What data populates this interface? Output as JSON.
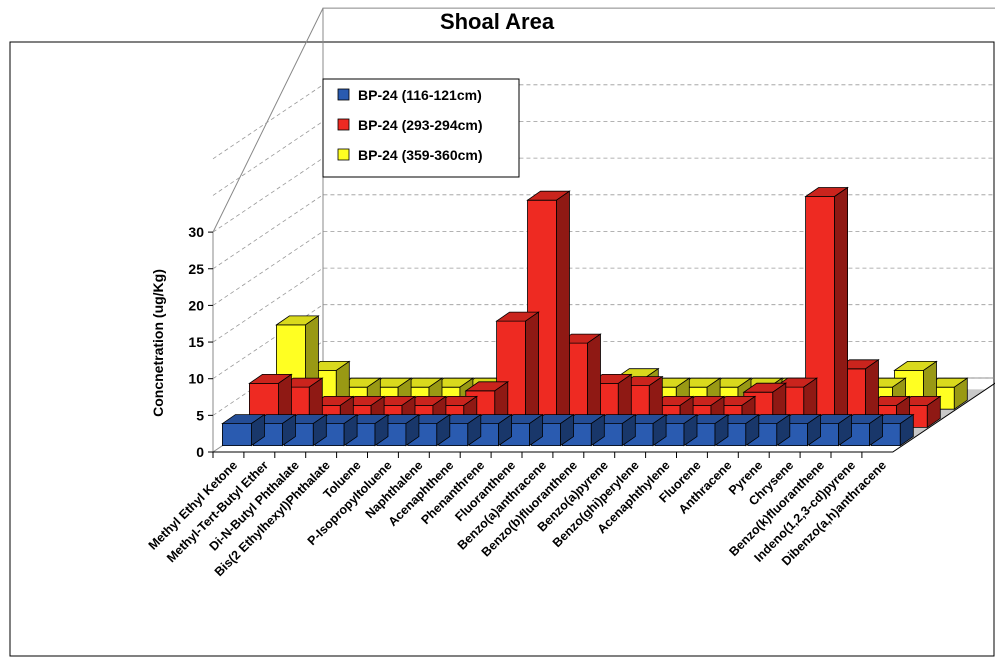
{
  "chart_data": {
    "type": "bar",
    "subtype": "3d-clustered-depth",
    "title": "Shoal Area",
    "ylabel": "Concnetration (ug/Kg)",
    "xlabel": "",
    "ylim": [
      0,
      30
    ],
    "yticks": [
      0,
      5,
      10,
      15,
      20,
      25,
      30
    ],
    "grid": true,
    "legend_position": "top-left",
    "categories": [
      "Methyl Ethyl Ketone",
      "Methyl-Tert-Butyl Ether",
      "Di-N-Butyl Phthalate",
      "Bis(2 Ethylhexyl)Phthalate",
      "Toluene",
      "P-Isopropyltoluene",
      "Naphthalene",
      "Acenaphthene",
      "Phenanthrene",
      "Fluoranthene",
      "Benzo(a)anthracene",
      "Benzo(b)fluoranthene",
      "Benzo(a)pyrene",
      "Benzo(ghi)perylene",
      "Acenaphthylene",
      "Fluorene",
      "Anthracene",
      "Pyrene",
      "Chrysene",
      "Benzo(k)fluoranthene",
      "Indeno(1,2,3-cd)pyrene",
      "Dibenzo(a,h)anthracene"
    ],
    "series": [
      {
        "name": "BP-24 (116-121cm)",
        "color": "#2a5bb0",
        "values": [
          0,
          0,
          0,
          0,
          0,
          0,
          0,
          0,
          0,
          0,
          0,
          0,
          0,
          0,
          0,
          0,
          0,
          0,
          0,
          0,
          0,
          0
        ]
      },
      {
        "name": "BP-24 (293-294cm)",
        "color": "#ee2a22",
        "values": [
          3,
          2.5,
          0,
          0,
          0,
          0,
          0,
          2,
          11.5,
          28,
          8.5,
          3,
          2.7,
          0,
          0,
          0,
          1.8,
          2.5,
          28.5,
          5,
          0,
          0
        ]
      },
      {
        "name": "BP-24 (359-360cm)",
        "color": "#ffff22",
        "values": [
          8.5,
          2.3,
          0,
          0,
          0,
          0,
          0,
          0,
          0,
          0,
          0,
          1.3,
          0,
          0,
          0,
          0,
          0,
          0,
          0,
          0,
          2.3,
          0
        ]
      }
    ]
  }
}
